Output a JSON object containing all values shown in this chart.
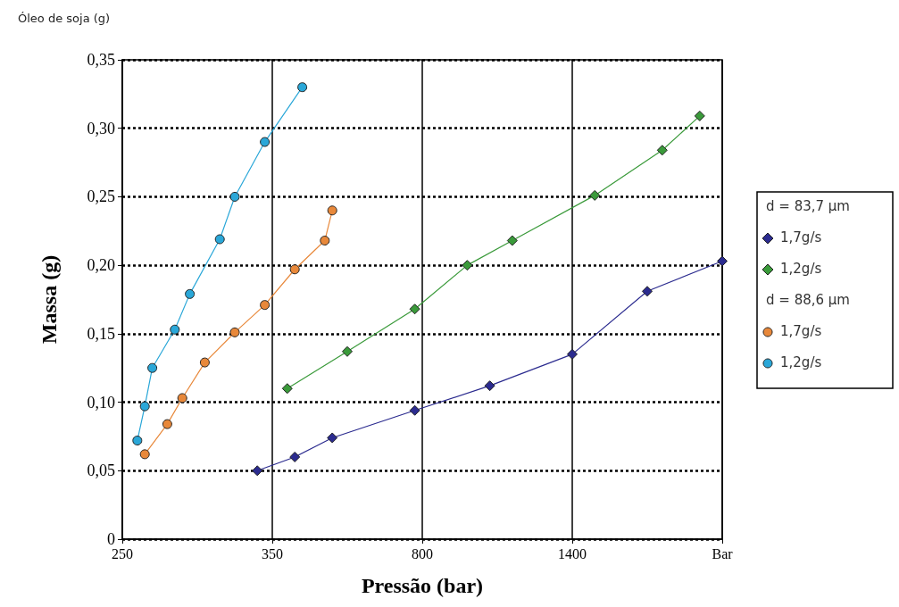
{
  "chart_data": {
    "type": "line",
    "title": "Óleo de soja (g)",
    "xlabel": "Pressão (bar)",
    "ylabel": "Massa (g)",
    "annotations": [
      "d = 83,7 μm",
      "d = 88,6 μm"
    ],
    "categories": [
      "250",
      null,
      null,
      null,
      null,
      null,
      null,
      null,
      null,
      null,
      null,
      null,
      null,
      null,
      null,
      null,
      null,
      null,
      null,
      null,
      "350",
      null,
      null,
      null,
      null,
      null,
      null,
      null,
      null,
      null,
      null,
      null,
      null,
      null,
      null,
      null,
      null,
      null,
      null,
      null,
      "800",
      null,
      null,
      null,
      null,
      null,
      null,
      null,
      null,
      null,
      null,
      null,
      null,
      null,
      null,
      null,
      null,
      null,
      null,
      null,
      "1400",
      null,
      null,
      null,
      null,
      null,
      null,
      null,
      null,
      null,
      null,
      null,
      null,
      null,
      null,
      null,
      null,
      null,
      null,
      null,
      "Bar"
    ],
    "ylim": [
      0,
      0.35
    ],
    "yticks": [
      {
        "value": 0,
        "label": "0"
      },
      {
        "value": 0.05,
        "label": "0,05"
      },
      {
        "value": 0.1,
        "label": "0,10"
      },
      {
        "value": 0.15,
        "label": "0,15"
      },
      {
        "value": 0.2,
        "label": "0,20"
      },
      {
        "value": 0.25,
        "label": "0,25"
      },
      {
        "value": 0.3,
        "label": "0,30"
      },
      {
        "value": 0.35,
        "label": "0,35"
      }
    ],
    "grid": true,
    "legend": "right",
    "series": [
      {
        "name": "1,7g/s",
        "color": "#2b2b8f",
        "marker": "diamond",
        "values": [
          null,
          null,
          null,
          null,
          null,
          null,
          null,
          null,
          null,
          null,
          null,
          null,
          null,
          null,
          null,
          null,
          null,
          null,
          0.05,
          null,
          null,
          null,
          null,
          0.06,
          null,
          null,
          null,
          null,
          0.074,
          null,
          null,
          null,
          null,
          null,
          null,
          null,
          null,
          null,
          null,
          0.094,
          null,
          null,
          null,
          null,
          null,
          null,
          null,
          null,
          null,
          0.112,
          null,
          null,
          null,
          null,
          null,
          null,
          null,
          null,
          null,
          null,
          0.135,
          null,
          null,
          null,
          null,
          null,
          null,
          null,
          null,
          null,
          0.181,
          null,
          null,
          null,
          null,
          null,
          null,
          null,
          null,
          null,
          0.203
        ]
      },
      {
        "name": "1,2g/s",
        "color": "#3a9a3a",
        "marker": "diamond",
        "values": [
          null,
          null,
          null,
          null,
          null,
          null,
          null,
          null,
          null,
          null,
          null,
          null,
          null,
          null,
          null,
          null,
          null,
          null,
          null,
          null,
          null,
          null,
          0.11,
          null,
          null,
          null,
          null,
          null,
          null,
          null,
          0.137,
          null,
          null,
          null,
          null,
          null,
          null,
          null,
          null,
          0.168,
          null,
          null,
          null,
          null,
          null,
          null,
          0.2,
          null,
          null,
          null,
          null,
          null,
          0.218,
          null,
          null,
          null,
          null,
          null,
          null,
          null,
          null,
          null,
          null,
          0.251,
          null,
          null,
          null,
          null,
          null,
          null,
          null,
          null,
          0.284,
          null,
          null,
          null,
          null,
          0.309,
          null,
          null,
          null
        ]
      },
      {
        "name": "1,7g/s",
        "color": "#e8883a",
        "marker": "circle",
        "values": [
          null,
          null,
          null,
          0.062,
          null,
          null,
          0.084,
          null,
          0.103,
          null,
          null,
          0.129,
          null,
          null,
          null,
          0.151,
          null,
          null,
          null,
          0.171,
          null,
          null,
          null,
          0.197,
          null,
          null,
          null,
          0.218,
          0.24,
          null,
          null,
          null,
          null,
          null,
          null,
          null,
          null,
          null,
          null,
          null,
          null,
          null,
          null,
          null,
          null,
          null,
          null,
          null,
          null,
          null,
          null,
          null,
          null,
          null,
          null,
          null,
          null,
          null,
          null,
          null,
          null,
          null,
          null,
          null,
          null,
          null,
          null,
          null,
          null,
          null,
          null,
          null,
          null,
          null,
          null,
          null,
          null,
          null,
          null,
          null,
          null
        ]
      },
      {
        "name": "1,2g/s",
        "color": "#2aa7d8",
        "marker": "circle",
        "values": [
          null,
          null,
          0.072,
          0.097,
          0.125,
          null,
          null,
          0.153,
          null,
          0.179,
          null,
          null,
          null,
          0.219,
          null,
          0.25,
          null,
          null,
          null,
          0.29,
          null,
          null,
          null,
          null,
          0.33,
          null,
          null,
          null,
          null,
          null,
          null,
          null,
          null,
          null,
          null,
          null,
          null,
          null,
          null,
          null,
          null,
          null,
          null,
          null,
          null,
          null,
          null,
          null,
          null,
          null,
          null,
          null,
          null,
          null,
          null,
          null,
          null,
          null,
          null,
          null,
          null,
          null,
          null,
          null,
          null,
          null,
          null,
          null,
          null,
          null,
          null,
          null,
          null,
          null,
          null,
          null,
          null,
          null,
          null,
          null,
          null
        ]
      }
    ]
  }
}
